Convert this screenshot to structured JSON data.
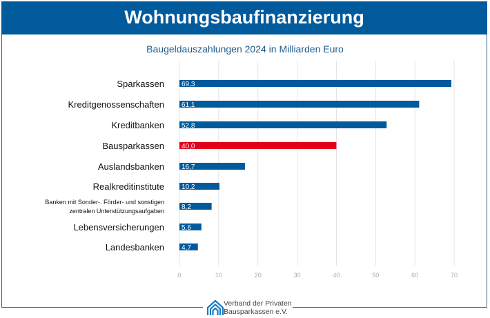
{
  "header": {
    "title": "Wohnungsbaufinanzierung"
  },
  "chart_data": {
    "type": "bar",
    "orientation": "horizontal",
    "title": "Baugeldauszahlungen 2024 in Milliarden Euro",
    "categories": [
      "Sparkassen",
      "Kreditgenossenschaften",
      "Kreditbanken",
      "Bausparkassen",
      "Auslandsbanken",
      "Realkreditinstitute",
      "Banken mit Sonder-. Förder- und sonstigen zentralen Unterstützungsaufgaben",
      "Lebensversicherungen",
      "Landesbanken"
    ],
    "category_lines": [
      [
        "Sparkassen"
      ],
      [
        "Kreditgenossenschaften"
      ],
      [
        "Kreditbanken"
      ],
      [
        "Bausparkassen"
      ],
      [
        "Auslandsbanken"
      ],
      [
        "Realkreditinstitute"
      ],
      [
        "Banken mit Sonder-. Förder- und sonstigen",
        "zentralen Unterstützungsaufgaben"
      ],
      [
        "Lebensversicherungen"
      ],
      [
        "Landesbanken"
      ]
    ],
    "values": [
      69.3,
      61.1,
      52.8,
      40.0,
      16.7,
      10.2,
      8.2,
      5.6,
      4.7
    ],
    "data_labels": [
      "69,3",
      "61,1",
      "52,8",
      "40,0",
      "16,7",
      "10,2",
      "8,2",
      "5,6",
      "4,7"
    ],
    "highlight_index": 3,
    "xlim": [
      0,
      70
    ],
    "xticks": [
      0,
      10,
      20,
      30,
      40,
      50,
      60,
      70
    ],
    "grid": true,
    "colors": {
      "bar": "#005a9c",
      "highlight": "#e2001a",
      "grid": "#e3e3e3",
      "tick_label": "#aaaaaa"
    }
  },
  "footer": {
    "logo_line1": "Verband der Privaten",
    "logo_line2": "Bausparkassen e.V.",
    "logo_icon": "houses-icon"
  }
}
